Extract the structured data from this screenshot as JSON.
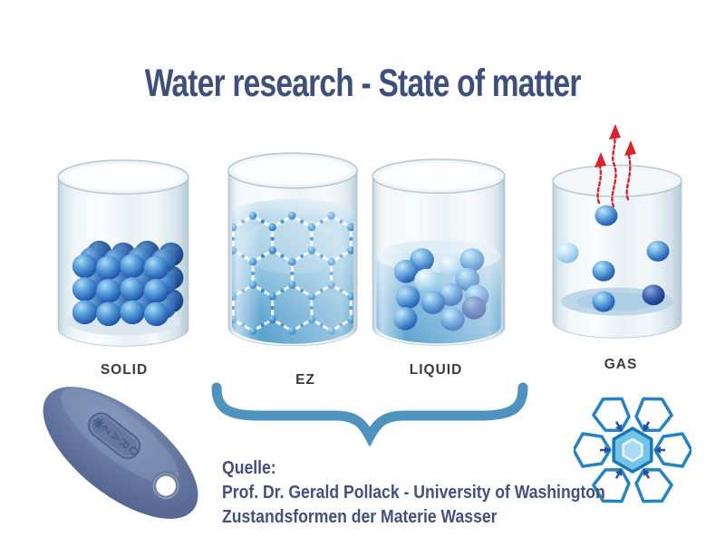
{
  "title": "Water research - State of matter",
  "states": [
    {
      "label": "SOLID"
    },
    {
      "label": "EZ"
    },
    {
      "label": "LIQUID"
    },
    {
      "label": "GAS"
    }
  ],
  "caption": {
    "source_label": "Quelle:",
    "line1": "Prof. Dr. Gerald Pollack - University of Washington",
    "line2": "Zustandsformen der Materie Wasser"
  },
  "device": {
    "embossed_text": "ZARO"
  },
  "icons": {
    "evaporation": "red-wavy-arrows-up",
    "brace": "horizontal-curly-brace",
    "snowflake": "hexagonal-water-cluster"
  },
  "colors": {
    "title_text": "#3f4f7c",
    "state_label": "#3b3b3b",
    "caption_text": "#44507c",
    "brace": "#4e93bd",
    "water": "#6fb0d6",
    "molecule_blue": "#2a66b5",
    "snowflake_stroke": "#2583c3",
    "arrow_red": "#d8252b",
    "device_body": "#5f719b"
  }
}
